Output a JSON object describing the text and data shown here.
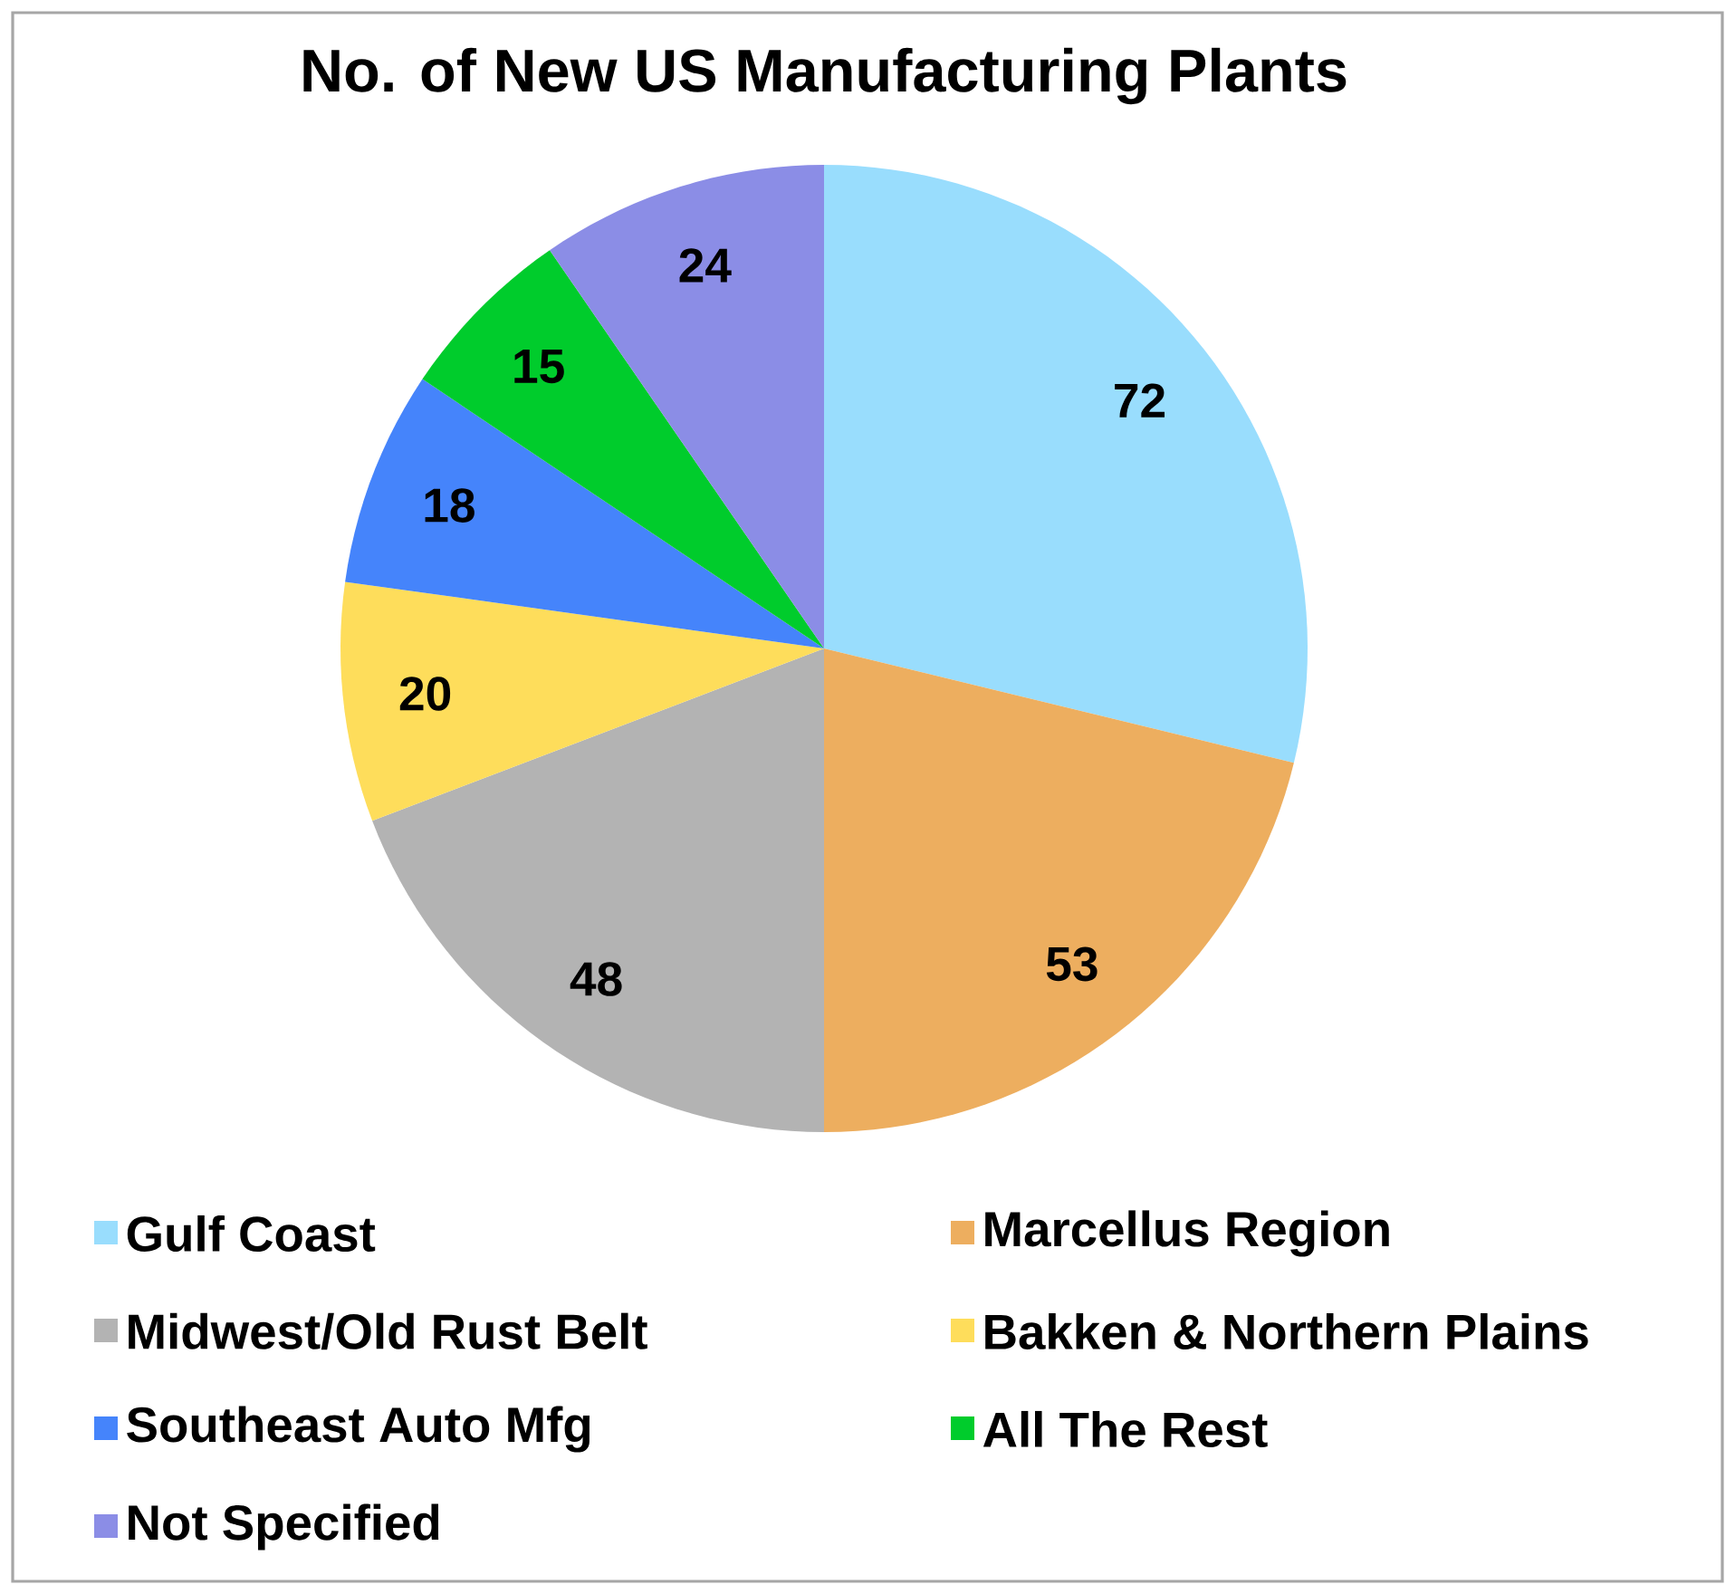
{
  "chart_data": {
    "type": "pie",
    "title": "No. of New US Manufacturing Plants",
    "categories": [
      "Gulf Coast",
      "Marcellus Region",
      "Midwest/Old Rust Belt",
      "Bakken & Northern Plains",
      "Southeast Auto Mfg",
      "All The Rest",
      "Not Specified"
    ],
    "values": [
      72,
      53,
      48,
      20,
      18,
      15,
      24
    ],
    "colors": [
      "#99ddfd",
      "#edae5f",
      "#b3b3b3",
      "#fedd5b",
      "#4584fb",
      "#00cc2c",
      "#8b8de6"
    ],
    "data_labels": true,
    "legend": "bottom"
  }
}
